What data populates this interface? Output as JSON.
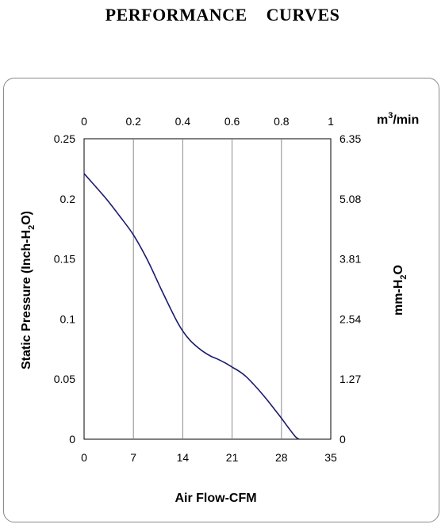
{
  "title": "PERFORMANCE    CURVES",
  "chart_data": {
    "type": "line",
    "xlabel": "Air Flow-CFM",
    "ylabel_left_main": "Static Pressure (Inch-H",
    "ylabel_left_sub": "2",
    "ylabel_left_end": "O)",
    "ylabel_right_main": "mm-H",
    "ylabel_right_sub": "2",
    "ylabel_right_end": "O",
    "x2label_main": "m",
    "x2label_sup": "3",
    "x2label_end": "/min",
    "xlim": [
      0,
      35
    ],
    "ylim": [
      0,
      0.25
    ],
    "x_ticks": [
      "0",
      "7",
      "14",
      "21",
      "28",
      "35"
    ],
    "y_ticks": [
      "0",
      "0.05",
      "0.1",
      "0.15",
      "0.2",
      "0.25"
    ],
    "x2_ticks": [
      "0",
      "0.2",
      "0.4",
      "0.6",
      "0.8",
      "1"
    ],
    "y2_ticks": [
      "0",
      "1.27",
      "2.54",
      "3.81",
      "5.08",
      "6.35"
    ],
    "grid": "vertical",
    "line_color": "#1a1a6e",
    "series": [
      {
        "x": [
          0,
          3,
          5,
          7,
          9,
          11,
          13,
          14,
          15,
          16,
          17,
          18,
          19,
          20,
          21,
          22,
          23,
          24,
          25,
          26,
          27,
          28,
          29,
          30,
          30.5
        ],
        "y": [
          0.221,
          0.201,
          0.186,
          0.17,
          0.149,
          0.124,
          0.1,
          0.09,
          0.0825,
          0.077,
          0.0725,
          0.069,
          0.0665,
          0.0635,
          0.06,
          0.0565,
          0.052,
          0.046,
          0.0395,
          0.0325,
          0.025,
          0.0175,
          0.0095,
          0.002,
          0
        ]
      }
    ]
  }
}
